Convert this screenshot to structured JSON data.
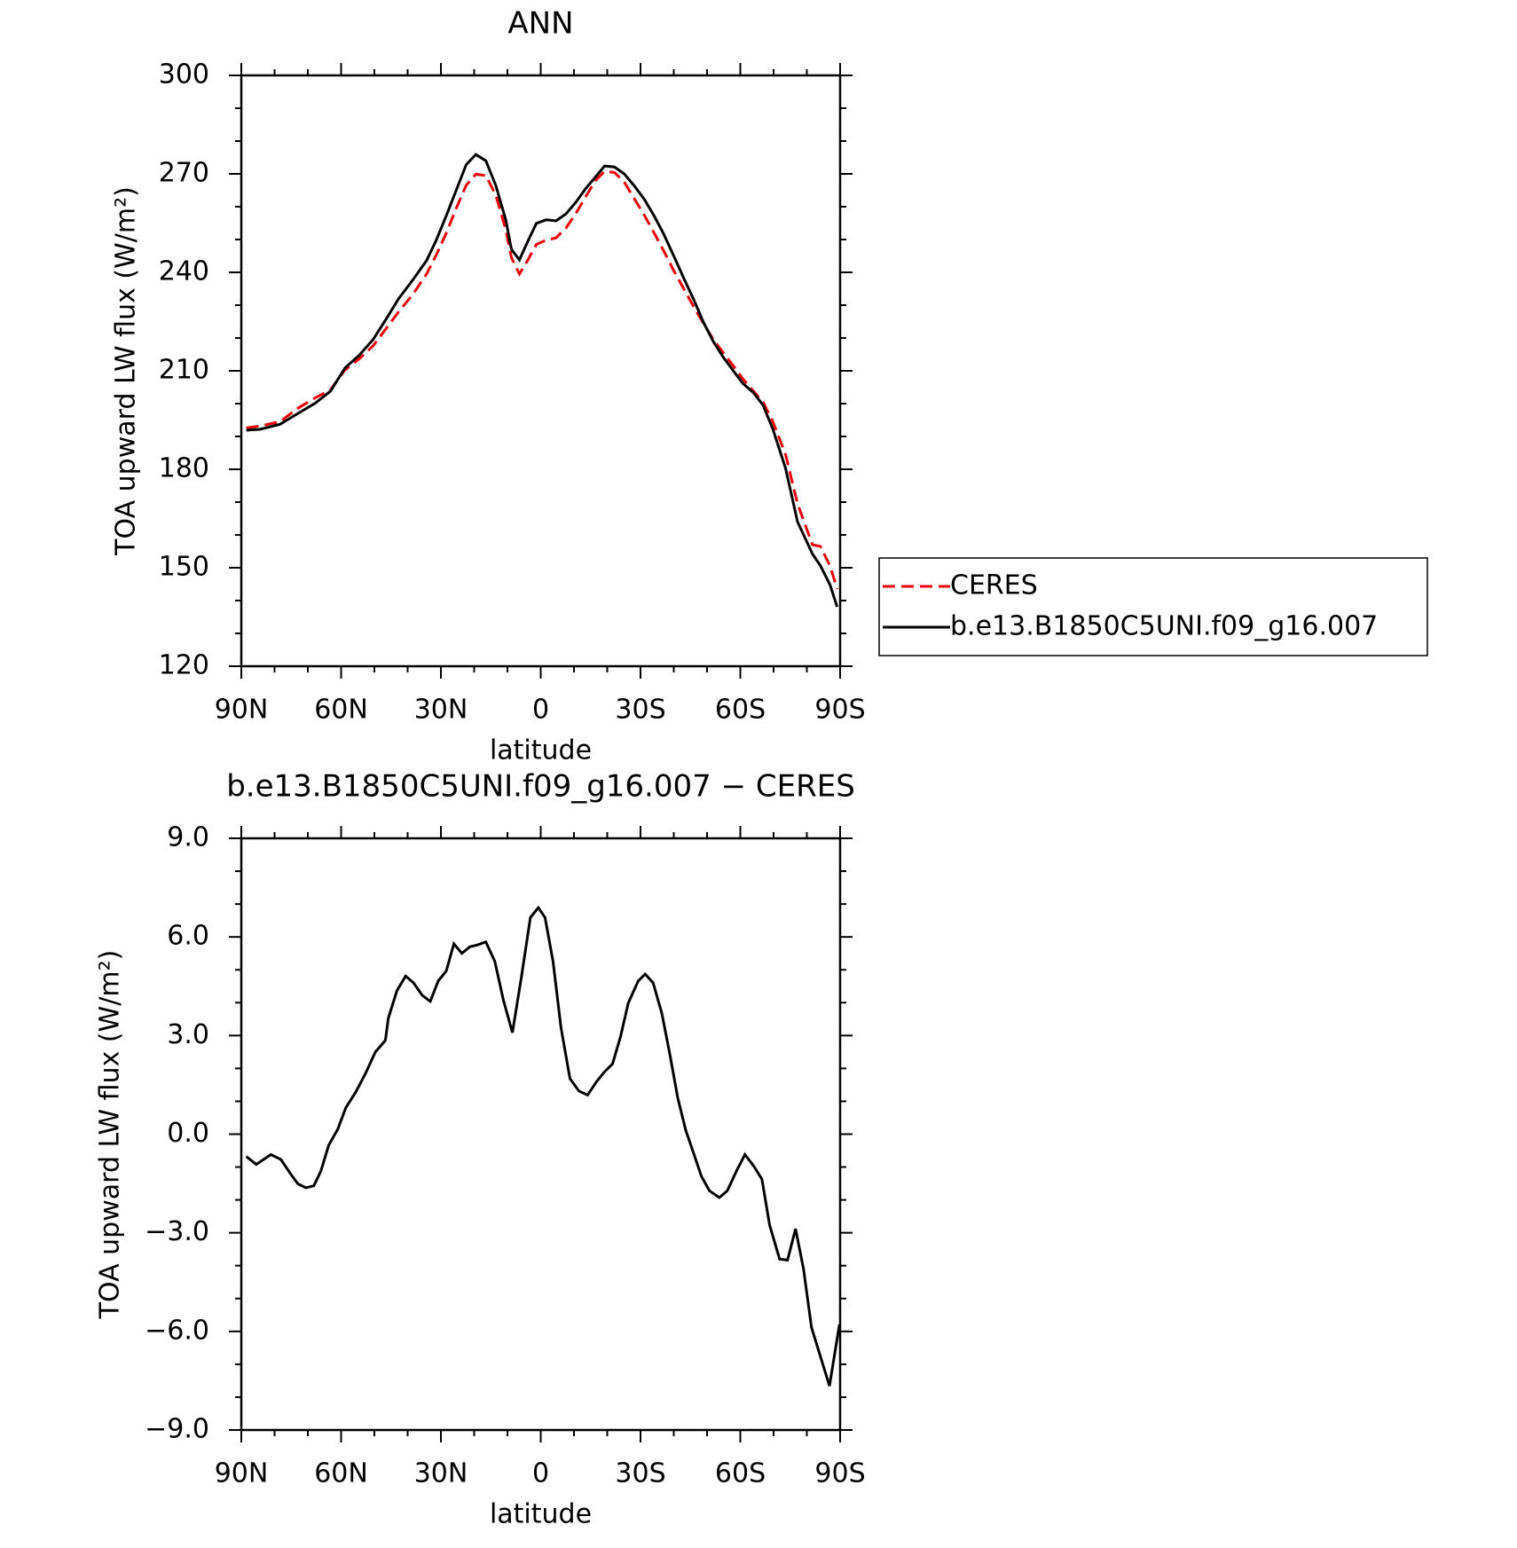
{
  "chart_data": [
    {
      "type": "line",
      "title": "ANN",
      "xlabel": "latitude",
      "ylabel": "TOA upward LW flux (W/m²)",
      "x": [
        88.5,
        84.3,
        78.4,
        73,
        67.7,
        63.2,
        58.8,
        54.6,
        50.4,
        46.5,
        42.7,
        38.5,
        34.3,
        31.4,
        28.4,
        25.4,
        22.4,
        19.5,
        16.5,
        13.5,
        10.5,
        8.8,
        6.4,
        4.0,
        1.3,
        -1.6,
        -4.6,
        -7.6,
        -10.6,
        -13.5,
        -16.5,
        -19.2,
        -22.2,
        -25.1,
        -28.1,
        -31.1,
        -34.1,
        -37,
        -40,
        -43,
        -46,
        -48.9,
        -51.9,
        -54.9,
        -57.9,
        -60.8,
        -63.8,
        -66.8,
        -69.8,
        -73.6,
        -77.2,
        -81.7,
        -84.1,
        -87,
        -89.1
      ],
      "series": [
        {
          "name": "CERES",
          "color": "#e8000b",
          "linestyle": "dashed",
          "values": [
            192.6,
            193.2,
            194.5,
            198.6,
            201.8,
            204.2,
            210.3,
            213.6,
            217.6,
            222.8,
            228,
            233.2,
            239.5,
            245.3,
            251.9,
            259.5,
            266.5,
            269.9,
            269.5,
            263.5,
            253,
            244.5,
            239.5,
            243.5,
            248.5,
            249.8,
            250.5,
            253.5,
            258,
            263,
            268,
            270.8,
            270.4,
            267.5,
            262.5,
            257.5,
            252,
            246.5,
            240.5,
            235,
            229.5,
            224.5,
            219.5,
            215.5,
            211.5,
            207.5,
            204,
            200.5,
            194.5,
            184.5,
            169.5,
            157,
            156.5,
            150.5,
            143.5
          ]
        },
        {
          "name": "b.e13.B1850C5UNI.f09_g16.007",
          "color": "#000000",
          "linestyle": "solid",
          "values": [
            191.9,
            192.2,
            193.7,
            197,
            200.2,
            203.8,
            210.9,
            214.7,
            219.5,
            225.7,
            232,
            237.6,
            243.6,
            249.8,
            257.2,
            265,
            272.8,
            275.9,
            274,
            266.5,
            256,
            247,
            243.8,
            249.2,
            254.9,
            256,
            255.7,
            257.8,
            261.4,
            265.5,
            269.1,
            272.4,
            272.1,
            270,
            266.4,
            262.3,
            257.2,
            251.6,
            245,
            238.2,
            231.7,
            224.8,
            218.9,
            214.1,
            210,
            206.1,
            203.5,
            199.6,
            192.2,
            180.3,
            164,
            154.2,
            150.6,
            144.7,
            138.1
          ]
        }
      ],
      "xlim": [
        90,
        -90
      ],
      "xticks": [
        {
          "value": 90,
          "label": "90N"
        },
        {
          "value": 60,
          "label": "60N"
        },
        {
          "value": 30,
          "label": "30N"
        },
        0,
        {
          "value": -30,
          "label": "30S"
        },
        {
          "value": -60,
          "label": "60S"
        },
        {
          "value": -90,
          "label": "90S"
        }
      ],
      "minor_xticks": [
        80,
        70,
        50,
        40,
        20,
        10,
        -10,
        -20,
        -40,
        -50,
        -70,
        -80
      ],
      "ylim": [
        120,
        300
      ],
      "yticks": [
        120,
        150,
        180,
        210,
        240,
        270,
        300
      ],
      "minor_yticks": [
        130,
        140,
        160,
        170,
        190,
        200,
        220,
        230,
        250,
        260,
        280,
        290
      ],
      "legend": "right"
    },
    {
      "type": "line",
      "title": "b.e13.B1850C5UNI.f09_g16.007 − CERES",
      "xlabel": "latitude",
      "ylabel": "TOA upward LW flux (W/m²)",
      "x": [
        88.5,
        85.5,
        81.1,
        78.1,
        75.1,
        73,
        70.6,
        68.2,
        66.1,
        63.7,
        61,
        58.6,
        55.6,
        52.7,
        49.7,
        46.7,
        45.8,
        43.2,
        40.6,
        38.2,
        35.6,
        33.2,
        30.8,
        28.4,
        26.1,
        23.7,
        21.3,
        18.9,
        16.5,
        13.8,
        11.2,
        8.5,
        5.8,
        3.1,
        0.7,
        -1.3,
        -3.7,
        -6.1,
        -8.8,
        -11.5,
        -14.1,
        -16.8,
        -19.2,
        -21.6,
        -24,
        -26.3,
        -29.3,
        -31.4,
        -33.8,
        -36.4,
        -38.8,
        -41.2,
        -43.6,
        -46,
        -48.3,
        -50.7,
        -53.7,
        -56.1,
        -58.8,
        -61.4,
        -64.1,
        -66.5,
        -68.8,
        -71.8,
        -74.2,
        -76.6,
        -79,
        -81.4,
        -84.1,
        -86.8,
        -89.8
      ],
      "series": [
        {
          "color": "#000000",
          "linestyle": "solid",
          "values": [
            -0.68,
            -0.92,
            -0.62,
            -0.77,
            -1.22,
            -1.51,
            -1.63,
            -1.57,
            -1.13,
            -0.33,
            0.15,
            0.8,
            1.28,
            1.84,
            2.5,
            2.85,
            3.53,
            4.37,
            4.81,
            4.6,
            4.22,
            4.04,
            4.66,
            4.96,
            5.79,
            5.5,
            5.7,
            5.76,
            5.85,
            5.26,
            4.07,
            3.09,
            4.78,
            6.59,
            6.89,
            6.59,
            5.26,
            3.24,
            1.69,
            1.31,
            1.19,
            1.6,
            1.9,
            2.14,
            2.97,
            3.98,
            4.66,
            4.87,
            4.6,
            3.68,
            2.44,
            1.1,
            0.12,
            -0.59,
            -1.28,
            -1.72,
            -1.93,
            -1.72,
            -1.13,
            -0.62,
            -0.98,
            -1.37,
            -2.76,
            -3.8,
            -3.83,
            -2.88,
            -4.1,
            -5.88,
            -6.77,
            -7.66,
            -5.79
          ]
        }
      ],
      "xlim": [
        90,
        -90
      ],
      "xticks": [
        {
          "value": 90,
          "label": "90N"
        },
        {
          "value": 60,
          "label": "60N"
        },
        {
          "value": 30,
          "label": "30N"
        },
        0,
        {
          "value": -30,
          "label": "30S"
        },
        {
          "value": -60,
          "label": "60S"
        },
        {
          "value": -90,
          "label": "90S"
        }
      ],
      "minor_xticks": [
        80,
        70,
        50,
        40,
        20,
        10,
        -10,
        -20,
        -40,
        -50,
        -70,
        -80
      ],
      "ylim": [
        -9,
        9
      ],
      "yticks": [
        {
          "value": -9,
          "label": "−9.0"
        },
        {
          "value": -6,
          "label": "−6.0"
        },
        {
          "value": -3,
          "label": "−3.0"
        },
        {
          "value": 0,
          "label": "0.0"
        },
        {
          "value": 3,
          "label": "3.0"
        },
        {
          "value": 6,
          "label": "6.0"
        },
        {
          "value": 9,
          "label": "9.0"
        }
      ],
      "minor_yticks": [
        -8,
        -7,
        -5,
        -4,
        -2,
        -1,
        1,
        2,
        4,
        5,
        7,
        8
      ]
    }
  ]
}
